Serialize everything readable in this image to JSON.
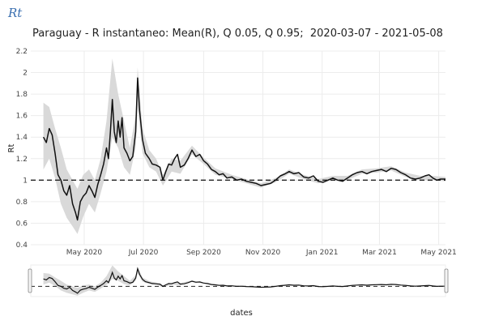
{
  "page": {
    "heading": "Rt"
  },
  "chart_data": {
    "type": "line",
    "title": "Paraguay - R instantaneo: Mean(R), Q 0.05, Q 0.95;  2020-03-07 - 2021-05-08",
    "xlabel": "dates",
    "ylabel": "Rt",
    "ylim": [
      0.4,
      2.2
    ],
    "yticks": [
      0.4,
      0.6,
      0.8,
      1,
      1.2,
      1.4,
      1.6,
      1.8,
      2,
      2.2
    ],
    "xlim": [
      "2020-03-07",
      "2021-05-08"
    ],
    "xticks": [
      {
        "date": "2020-05-01",
        "label": "May 2020"
      },
      {
        "date": "2020-07-01",
        "label": "Jul 2020"
      },
      {
        "date": "2020-09-01",
        "label": "Sep 2020"
      },
      {
        "date": "2020-11-01",
        "label": "Nov 2020"
      },
      {
        "date": "2021-01-01",
        "label": "Jan 2021"
      },
      {
        "date": "2021-03-01",
        "label": "Mar 2021"
      },
      {
        "date": "2021-05-01",
        "label": "May 2021"
      }
    ],
    "reference_line": 1,
    "grid": true,
    "range_slider": true,
    "colors": {
      "mean": "#111111",
      "band": "#d9d9d9",
      "grid": "#ececec",
      "reference": "#222222"
    },
    "series": [
      {
        "name": "Mean(R)",
        "points": [
          [
            "2020-03-20",
            1.4
          ],
          [
            "2020-03-23",
            1.35
          ],
          [
            "2020-03-26",
            1.48
          ],
          [
            "2020-03-29",
            1.42
          ],
          [
            "2020-04-01",
            1.25
          ],
          [
            "2020-04-04",
            1.05
          ],
          [
            "2020-04-07",
            1.0
          ],
          [
            "2020-04-10",
            0.9
          ],
          [
            "2020-04-13",
            0.86
          ],
          [
            "2020-04-16",
            0.95
          ],
          [
            "2020-04-19",
            0.78
          ],
          [
            "2020-04-22",
            0.7
          ],
          [
            "2020-04-24",
            0.63
          ],
          [
            "2020-04-27",
            0.8
          ],
          [
            "2020-04-30",
            0.85
          ],
          [
            "2020-05-03",
            0.88
          ],
          [
            "2020-05-06",
            0.95
          ],
          [
            "2020-05-09",
            0.9
          ],
          [
            "2020-05-12",
            0.84
          ],
          [
            "2020-05-15",
            0.96
          ],
          [
            "2020-05-18",
            1.05
          ],
          [
            "2020-05-21",
            1.15
          ],
          [
            "2020-05-24",
            1.3
          ],
          [
            "2020-05-26",
            1.2
          ],
          [
            "2020-05-28",
            1.45
          ],
          [
            "2020-05-30",
            1.75
          ],
          [
            "2020-06-01",
            1.45
          ],
          [
            "2020-06-03",
            1.35
          ],
          [
            "2020-06-05",
            1.55
          ],
          [
            "2020-06-07",
            1.4
          ],
          [
            "2020-06-09",
            1.58
          ],
          [
            "2020-06-11",
            1.3
          ],
          [
            "2020-06-14",
            1.25
          ],
          [
            "2020-06-17",
            1.18
          ],
          [
            "2020-06-20",
            1.22
          ],
          [
            "2020-06-23",
            1.45
          ],
          [
            "2020-06-25",
            1.95
          ],
          [
            "2020-06-27",
            1.65
          ],
          [
            "2020-06-30",
            1.38
          ],
          [
            "2020-07-03",
            1.25
          ],
          [
            "2020-07-07",
            1.2
          ],
          [
            "2020-07-10",
            1.15
          ],
          [
            "2020-07-14",
            1.14
          ],
          [
            "2020-07-18",
            1.12
          ],
          [
            "2020-07-21",
            1.0
          ],
          [
            "2020-07-24",
            1.08
          ],
          [
            "2020-07-27",
            1.15
          ],
          [
            "2020-07-30",
            1.14
          ],
          [
            "2020-08-02",
            1.2
          ],
          [
            "2020-08-05",
            1.24
          ],
          [
            "2020-08-08",
            1.12
          ],
          [
            "2020-08-12",
            1.14
          ],
          [
            "2020-08-16",
            1.2
          ],
          [
            "2020-08-20",
            1.28
          ],
          [
            "2020-08-24",
            1.22
          ],
          [
            "2020-08-28",
            1.24
          ],
          [
            "2020-09-01",
            1.18
          ],
          [
            "2020-09-05",
            1.15
          ],
          [
            "2020-09-09",
            1.1
          ],
          [
            "2020-09-13",
            1.08
          ],
          [
            "2020-09-17",
            1.05
          ],
          [
            "2020-09-21",
            1.06
          ],
          [
            "2020-09-25",
            1.02
          ],
          [
            "2020-09-30",
            1.03
          ],
          [
            "2020-10-05",
            1.0
          ],
          [
            "2020-10-10",
            1.01
          ],
          [
            "2020-10-15",
            0.99
          ],
          [
            "2020-10-20",
            0.98
          ],
          [
            "2020-10-25",
            0.97
          ],
          [
            "2020-10-30",
            0.95
          ],
          [
            "2020-11-04",
            0.96
          ],
          [
            "2020-11-09",
            0.97
          ],
          [
            "2020-11-14",
            1.0
          ],
          [
            "2020-11-19",
            1.04
          ],
          [
            "2020-11-24",
            1.06
          ],
          [
            "2020-11-28",
            1.08
          ],
          [
            "2020-12-03",
            1.06
          ],
          [
            "2020-12-08",
            1.07
          ],
          [
            "2020-12-13",
            1.03
          ],
          [
            "2020-12-18",
            1.02
          ],
          [
            "2020-12-23",
            1.04
          ],
          [
            "2020-12-28",
            0.99
          ],
          [
            "2021-01-02",
            0.98
          ],
          [
            "2021-01-07",
            1.0
          ],
          [
            "2021-01-12",
            1.02
          ],
          [
            "2021-01-17",
            1.0
          ],
          [
            "2021-01-22",
            0.99
          ],
          [
            "2021-01-27",
            1.02
          ],
          [
            "2021-02-01",
            1.05
          ],
          [
            "2021-02-06",
            1.07
          ],
          [
            "2021-02-11",
            1.08
          ],
          [
            "2021-02-16",
            1.06
          ],
          [
            "2021-02-21",
            1.08
          ],
          [
            "2021-02-26",
            1.09
          ],
          [
            "2021-03-03",
            1.1
          ],
          [
            "2021-03-08",
            1.08
          ],
          [
            "2021-03-13",
            1.11
          ],
          [
            "2021-03-18",
            1.1
          ],
          [
            "2021-03-23",
            1.07
          ],
          [
            "2021-03-28",
            1.05
          ],
          [
            "2021-04-02",
            1.02
          ],
          [
            "2021-04-07",
            1.01
          ],
          [
            "2021-04-12",
            1.02
          ],
          [
            "2021-04-17",
            1.04
          ],
          [
            "2021-04-21",
            1.05
          ],
          [
            "2021-04-25",
            1.02
          ],
          [
            "2021-04-29",
            1.0
          ],
          [
            "2021-05-03",
            1.01
          ],
          [
            "2021-05-08",
            1.01
          ]
        ]
      },
      {
        "name": "Q 0.95",
        "points": [
          [
            "2020-03-20",
            1.72
          ],
          [
            "2020-03-26",
            1.68
          ],
          [
            "2020-04-01",
            1.48
          ],
          [
            "2020-04-07",
            1.3
          ],
          [
            "2020-04-13",
            1.1
          ],
          [
            "2020-04-19",
            1.0
          ],
          [
            "2020-04-24",
            0.92
          ],
          [
            "2020-04-30",
            1.05
          ],
          [
            "2020-05-06",
            1.1
          ],
          [
            "2020-05-12",
            1.0
          ],
          [
            "2020-05-18",
            1.2
          ],
          [
            "2020-05-24",
            1.55
          ],
          [
            "2020-05-30",
            2.13
          ],
          [
            "2020-06-05",
            1.8
          ],
          [
            "2020-06-11",
            1.55
          ],
          [
            "2020-06-17",
            1.3
          ],
          [
            "2020-06-23",
            1.6
          ],
          [
            "2020-06-25",
            2.05
          ],
          [
            "2020-06-30",
            1.48
          ],
          [
            "2020-07-07",
            1.28
          ],
          [
            "2020-07-14",
            1.2
          ],
          [
            "2020-07-21",
            1.05
          ],
          [
            "2020-07-30",
            1.2
          ],
          [
            "2020-08-08",
            1.18
          ],
          [
            "2020-08-20",
            1.32
          ],
          [
            "2020-09-01",
            1.21
          ],
          [
            "2020-09-13",
            1.11
          ],
          [
            "2020-09-30",
            1.05
          ],
          [
            "2020-10-15",
            1.01
          ],
          [
            "2020-10-30",
            0.97
          ],
          [
            "2020-11-14",
            1.02
          ],
          [
            "2020-11-28",
            1.1
          ],
          [
            "2020-12-13",
            1.05
          ],
          [
            "2020-12-28",
            1.01
          ],
          [
            "2021-01-12",
            1.04
          ],
          [
            "2021-01-27",
            1.04
          ],
          [
            "2021-02-11",
            1.1
          ],
          [
            "2021-02-26",
            1.11
          ],
          [
            "2021-03-13",
            1.13
          ],
          [
            "2021-03-28",
            1.07
          ],
          [
            "2021-04-12",
            1.04
          ],
          [
            "2021-04-25",
            1.04
          ],
          [
            "2021-05-08",
            1.03
          ]
        ]
      },
      {
        "name": "Q 0.05",
        "points": [
          [
            "2020-03-20",
            1.1
          ],
          [
            "2020-03-26",
            1.2
          ],
          [
            "2020-04-01",
            1.02
          ],
          [
            "2020-04-07",
            0.78
          ],
          [
            "2020-04-13",
            0.65
          ],
          [
            "2020-04-19",
            0.57
          ],
          [
            "2020-04-24",
            0.5
          ],
          [
            "2020-04-30",
            0.66
          ],
          [
            "2020-05-06",
            0.78
          ],
          [
            "2020-05-12",
            0.7
          ],
          [
            "2020-05-18",
            0.88
          ],
          [
            "2020-05-24",
            1.08
          ],
          [
            "2020-05-30",
            1.4
          ],
          [
            "2020-06-05",
            1.3
          ],
          [
            "2020-06-11",
            1.12
          ],
          [
            "2020-06-17",
            1.05
          ],
          [
            "2020-06-23",
            1.3
          ],
          [
            "2020-06-25",
            1.7
          ],
          [
            "2020-06-30",
            1.25
          ],
          [
            "2020-07-07",
            1.12
          ],
          [
            "2020-07-14",
            1.08
          ],
          [
            "2020-07-21",
            0.95
          ],
          [
            "2020-07-30",
            1.08
          ],
          [
            "2020-08-08",
            1.06
          ],
          [
            "2020-08-20",
            1.24
          ],
          [
            "2020-09-01",
            1.15
          ],
          [
            "2020-09-13",
            1.05
          ],
          [
            "2020-09-30",
            1.01
          ],
          [
            "2020-10-15",
            0.97
          ],
          [
            "2020-10-30",
            0.93
          ],
          [
            "2020-11-14",
            0.98
          ],
          [
            "2020-11-28",
            1.06
          ],
          [
            "2020-12-13",
            1.01
          ],
          [
            "2020-12-28",
            0.97
          ],
          [
            "2021-01-12",
            1.0
          ],
          [
            "2021-01-27",
            1.0
          ],
          [
            "2021-02-11",
            1.06
          ],
          [
            "2021-02-26",
            1.07
          ],
          [
            "2021-03-13",
            1.09
          ],
          [
            "2021-03-28",
            1.03
          ],
          [
            "2021-04-12",
            1.0
          ],
          [
            "2021-04-25",
            1.0
          ],
          [
            "2021-05-08",
            0.99
          ]
        ]
      }
    ]
  }
}
